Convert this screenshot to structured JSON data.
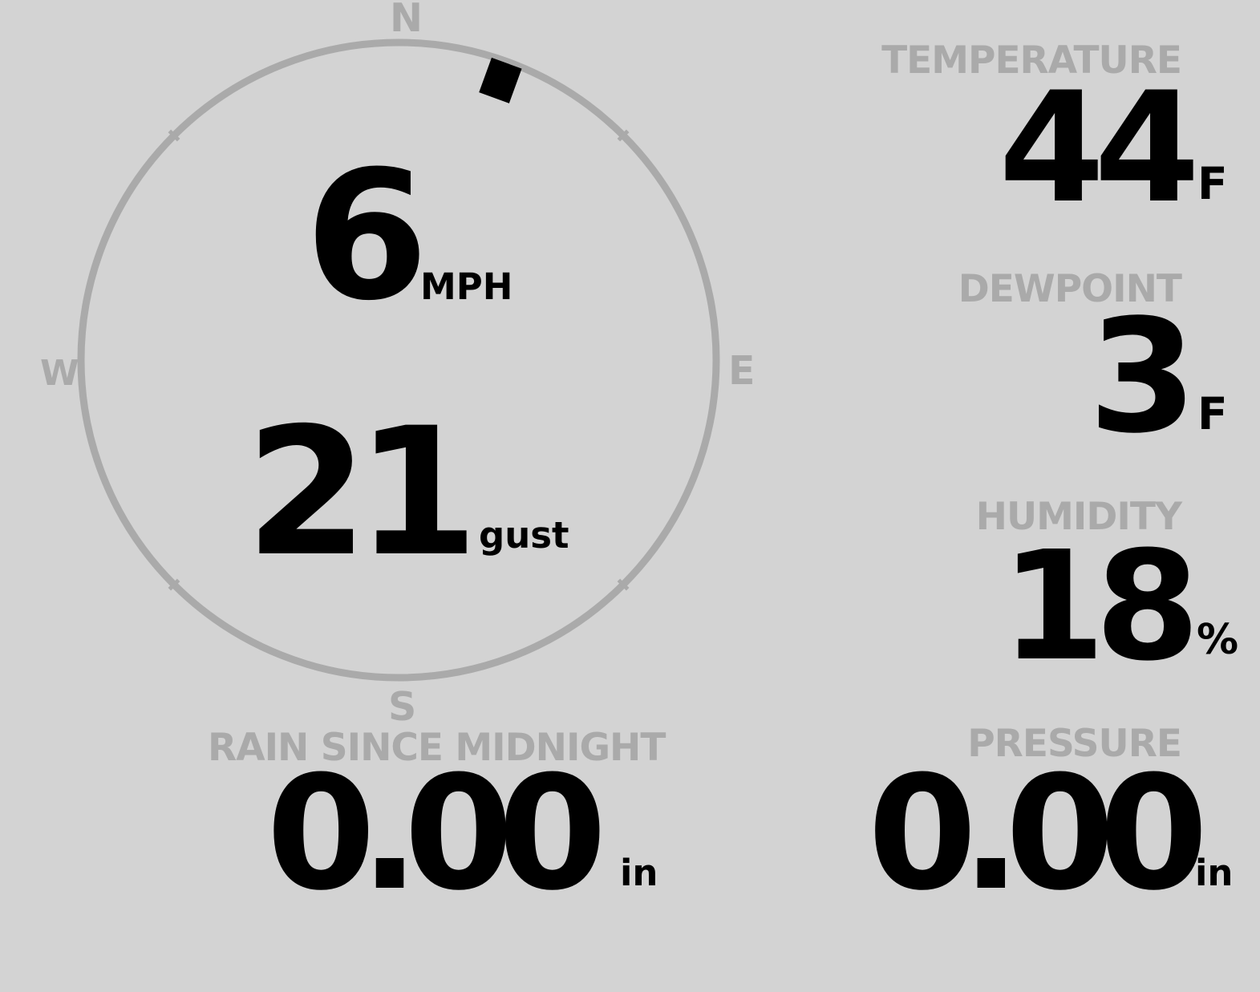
{
  "wind": {
    "speed": "6",
    "speed_unit": "MPH",
    "gust": "21",
    "gust_label": "gust",
    "direction_degrees": 20,
    "compass": {
      "n": "N",
      "e": "E",
      "s": "S",
      "w": "W"
    }
  },
  "temperature": {
    "label": "TEMPERATURE",
    "value": "44",
    "unit": "F"
  },
  "dewpoint": {
    "label": "DEWPOINT",
    "value": "3",
    "unit": "F"
  },
  "humidity": {
    "label": "HUMIDITY",
    "value": "18",
    "unit": "%"
  },
  "rain": {
    "label": "RAIN SINCE MIDNIGHT",
    "value": "0.00",
    "unit": "in"
  },
  "pressure": {
    "label": "PRESSURE",
    "value": "0.00",
    "unit": "in"
  },
  "colors": {
    "background": "#d3d3d3",
    "dial": "#aaaaaa",
    "label": "#aaaaaa",
    "value": "#000000"
  }
}
